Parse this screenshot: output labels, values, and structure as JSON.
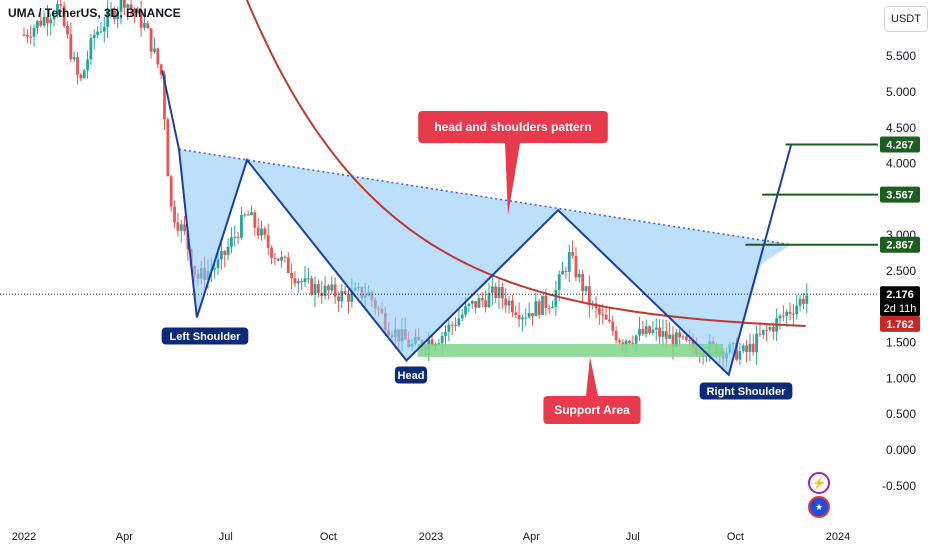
{
  "header": {
    "title": "UMA / TetherUS, 3D, BINANCE",
    "currency_button": "USDT"
  },
  "chart_data": {
    "type": "line",
    "y_axis": {
      "ticks": [
        "5.500",
        "5.000",
        "4.500",
        "4.000",
        "3.000",
        "2.500",
        "1.500",
        "1.000",
        "0.500",
        "0.000",
        "-0.500"
      ],
      "tick_values": [
        5.5,
        5.0,
        4.5,
        4.0,
        3.0,
        2.5,
        1.5,
        1.0,
        0.5,
        0.0,
        -0.5
      ],
      "ylim": [
        -0.5,
        5.5
      ]
    },
    "x_axis": {
      "ticks": [
        "2022",
        "Apr",
        "Jul",
        "Oct",
        "2023",
        "Apr",
        "Jul",
        "Oct",
        "2024"
      ]
    },
    "price_labels": [
      {
        "value": "4.267",
        "color": "#1b5e20"
      },
      {
        "value": "3.567",
        "color": "#1b5e20"
      },
      {
        "value": "2.867",
        "color": "#1b5e20"
      },
      {
        "value": "2.176",
        "subtext": "2d 11h",
        "color": "#000000"
      },
      {
        "value": "1.762",
        "color": "#c62828"
      }
    ],
    "annotations": [
      {
        "text": "head and shoulders pattern",
        "kind": "callout",
        "color": "#e83a4d"
      },
      {
        "text": "Support Area",
        "kind": "callout",
        "color": "#e83a4d"
      },
      {
        "text": "Left Shoulder",
        "kind": "label",
        "color": "#0d2a7a"
      },
      {
        "text": "Head",
        "kind": "label",
        "color": "#0d2a7a"
      },
      {
        "text": "Right Shoulder",
        "kind": "label",
        "color": "#0d2a7a"
      }
    ],
    "pattern_points": [
      {
        "label": "A",
        "x_date": "2022-05-05",
        "y": 5.3
      },
      {
        "label": "B",
        "x_date": "2022-05-20",
        "y": 4.2
      },
      {
        "label": "Left shoulder low",
        "x_date": "2022-06-05",
        "y": 1.85
      },
      {
        "label": "C",
        "x_date": "2022-07-20",
        "y": 4.05
      },
      {
        "label": "Head low",
        "x_date": "2022-12-10",
        "y": 1.25
      },
      {
        "label": "D",
        "x_date": "2023-04-25",
        "y": 3.35
      },
      {
        "label": "Right shoulder low",
        "x_date": "2023-09-25",
        "y": 1.05
      },
      {
        "label": "Projection",
        "x_date": "2023-11-20",
        "y": 4.267
      }
    ],
    "neckline": {
      "from": {
        "x_date": "2022-05-20",
        "y": 4.2
      },
      "to": {
        "x_date": "2023-11-20",
        "y": 2.867
      }
    },
    "ma_line_color": "#c0392b",
    "candle_colors": {
      "up": "#26a69a",
      "down": "#ef5350"
    },
    "support_area": {
      "y_low": 1.3,
      "y_high": 1.48
    },
    "target_levels": [
      4.267,
      3.567,
      2.867
    ],
    "current_price": 2.176,
    "ma_value": 1.762
  },
  "colors": {
    "pattern_fill": "#90caf9",
    "pattern_line": "#1a3fa8",
    "neckline": "#3b5bdb",
    "support_fill": "#7fd58a",
    "target_line": "#1b5e20"
  }
}
